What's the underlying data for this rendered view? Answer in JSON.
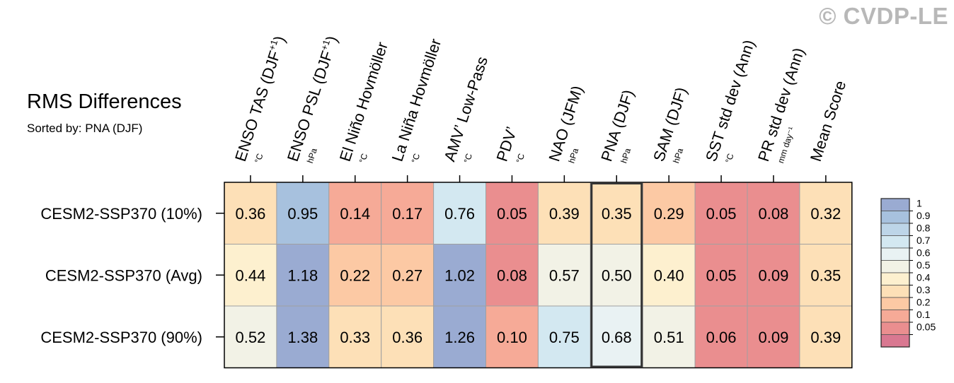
{
  "watermark": "© CVDP-LE",
  "header": {
    "title": "RMS Differences",
    "subtitle": "Sorted by: PNA (DJF)"
  },
  "chart_data": {
    "type": "heatmap",
    "title": "RMS Differences",
    "subtitle": "Sorted by: PNA (DJF)",
    "columns": [
      {
        "label": "ENSO TAS (DJF",
        "sup": "+1",
        "close": ")",
        "unit": "°C"
      },
      {
        "label": "ENSO PSL (DJF",
        "sup": "+1",
        "close": ")",
        "unit": "hPa"
      },
      {
        "label": "El Niño Hovmöller",
        "sup": "",
        "close": "",
        "unit": "°C"
      },
      {
        "label": "La Niña Hovmöller",
        "sup": "",
        "close": "",
        "unit": "°C"
      },
      {
        "label": "AMV’ Low-Pass",
        "sup": "",
        "close": "",
        "unit": "°C"
      },
      {
        "label": "PDV’",
        "sup": "",
        "close": "",
        "unit": "°C"
      },
      {
        "label": "NAO (JFM)",
        "sup": "",
        "close": "",
        "unit": "hPa"
      },
      {
        "label": "PNA (DJF)",
        "sup": "",
        "close": "",
        "unit": "hPa"
      },
      {
        "label": "SAM (DJF)",
        "sup": "",
        "close": "",
        "unit": "hPa"
      },
      {
        "label": "SST std dev (Ann)",
        "sup": "",
        "close": "",
        "unit": "°C"
      },
      {
        "label": "PR std dev (Ann)",
        "sup": "",
        "close": "",
        "unit": "mm day⁻¹"
      },
      {
        "label": "Mean Score",
        "sup": "",
        "close": "",
        "unit": ""
      }
    ],
    "rows": [
      "CESM2-SSP370 (10%)",
      "CESM2-SSP370 (Avg)",
      "CESM2-SSP370 (90%)"
    ],
    "values": [
      [
        "0.36",
        "0.95",
        "0.14",
        "0.17",
        "0.76",
        "0.05",
        "0.39",
        "0.35",
        "0.29",
        "0.05",
        "0.08",
        "0.32"
      ],
      [
        "0.44",
        "1.18",
        "0.22",
        "0.27",
        "1.02",
        "0.08",
        "0.57",
        "0.50",
        "0.40",
        "0.05",
        "0.09",
        "0.35"
      ],
      [
        "0.52",
        "1.38",
        "0.33",
        "0.36",
        "1.26",
        "0.10",
        "0.75",
        "0.68",
        "0.51",
        "0.06",
        "0.09",
        "0.39"
      ]
    ],
    "highlighted_column": "PNA (DJF)",
    "colorbar": {
      "levels": [
        "1",
        "0.9",
        "0.8",
        "0.7",
        "0.6",
        "0.5",
        "0.4",
        "0.3",
        "0.2",
        "0.1",
        "0.05"
      ],
      "colors": [
        "#9aabd2",
        "#a7c1de",
        "#bdd5e8",
        "#d3e8f1",
        "#e9f2f3",
        "#f2f2e6",
        "#fdf0cf",
        "#fde0b7",
        "#fcc9a4",
        "#f6aa97",
        "#ea8e8f",
        "#d97891"
      ]
    }
  }
}
